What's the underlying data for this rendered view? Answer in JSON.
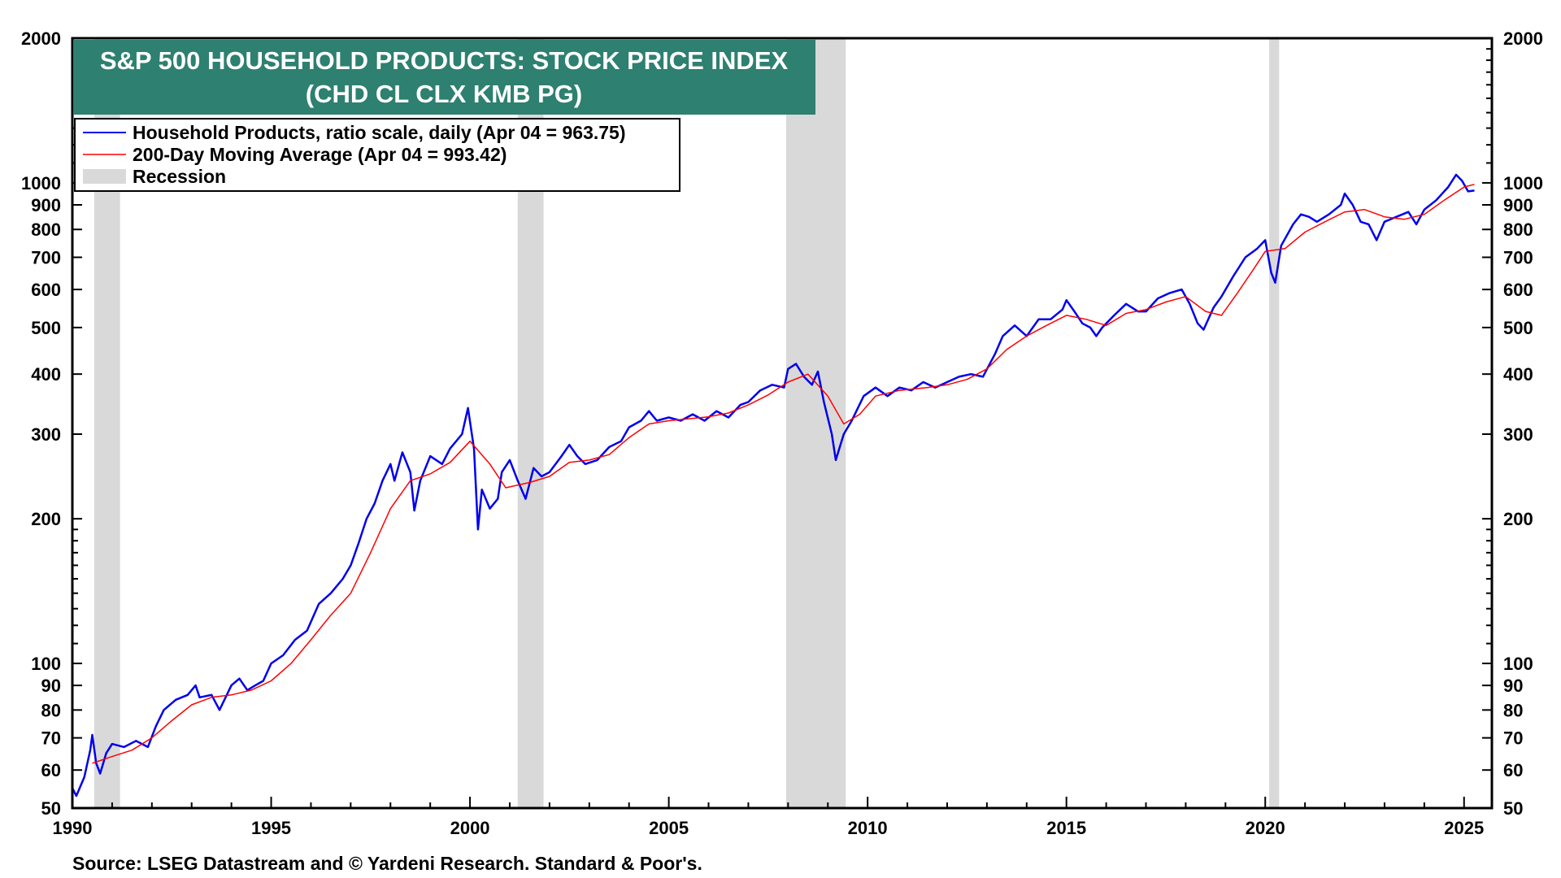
{
  "chart_data": {
    "type": "line",
    "title_line1": "S&P 500 HOUSEHOLD PRODUCTS: STOCK PRICE INDEX",
    "title_line2": "(CHD CL CLX KMB PG)",
    "x_range": [
      1990,
      2025.7
    ],
    "y_range": [
      50,
      2000
    ],
    "y_scale": "log",
    "x_ticks": [
      {
        "value": 1990,
        "label": "1990"
      },
      {
        "value": 1995,
        "label": "1995"
      },
      {
        "value": 2000,
        "label": "2000"
      },
      {
        "value": 2005,
        "label": "2005"
      },
      {
        "value": 2010,
        "label": "2010"
      },
      {
        "value": 2015,
        "label": "2015"
      },
      {
        "value": 2020,
        "label": "2020"
      },
      {
        "value": 2025,
        "label": "2025"
      }
    ],
    "y_ticks": [
      {
        "value": 50,
        "label": "50"
      },
      {
        "value": 60,
        "label": "60"
      },
      {
        "value": 70,
        "label": "70"
      },
      {
        "value": 80,
        "label": "80"
      },
      {
        "value": 90,
        "label": "90"
      },
      {
        "value": 100,
        "label": "100"
      },
      {
        "value": 200,
        "label": "200"
      },
      {
        "value": 300,
        "label": "300"
      },
      {
        "value": 400,
        "label": "400"
      },
      {
        "value": 500,
        "label": "500"
      },
      {
        "value": 600,
        "label": "600"
      },
      {
        "value": 700,
        "label": "700"
      },
      {
        "value": 800,
        "label": "800"
      },
      {
        "value": 900,
        "label": "900"
      },
      {
        "value": 1000,
        "label": "1000"
      },
      {
        "value": 2000,
        "label": "2000"
      }
    ],
    "legend": [
      {
        "label": "Household Products, ratio scale, daily (Apr 04 = 963.75)",
        "color": "#0000ee",
        "kind": "line"
      },
      {
        "label": "200-Day Moving Average (Apr 04 = 993.42)",
        "color": "#ff0000",
        "kind": "line"
      },
      {
        "label": "Recession",
        "color": "#d9d9d9",
        "kind": "box"
      }
    ],
    "recessions": [
      [
        1990.55,
        1991.2
      ],
      [
        2001.2,
        2001.85
      ],
      [
        2007.95,
        2009.45
      ],
      [
        2020.1,
        2020.35
      ]
    ],
    "series": [
      {
        "name": "Household Products, ratio scale, daily",
        "color": "#0000ee",
        "points": [
          [
            1990.0,
            55
          ],
          [
            1990.1,
            53
          ],
          [
            1990.3,
            58
          ],
          [
            1990.45,
            66
          ],
          [
            1990.5,
            71
          ],
          [
            1990.6,
            62
          ],
          [
            1990.7,
            59
          ],
          [
            1990.85,
            65
          ],
          [
            1991.0,
            68
          ],
          [
            1991.3,
            67
          ],
          [
            1991.6,
            69
          ],
          [
            1991.9,
            67
          ],
          [
            1992.1,
            74
          ],
          [
            1992.3,
            80
          ],
          [
            1992.6,
            84
          ],
          [
            1992.9,
            86
          ],
          [
            1993.1,
            90
          ],
          [
            1993.2,
            85
          ],
          [
            1993.5,
            86
          ],
          [
            1993.7,
            80
          ],
          [
            1994.0,
            90
          ],
          [
            1994.2,
            93
          ],
          [
            1994.4,
            88
          ],
          [
            1994.6,
            90
          ],
          [
            1994.8,
            92
          ],
          [
            1995.0,
            100
          ],
          [
            1995.3,
            104
          ],
          [
            1995.6,
            112
          ],
          [
            1995.9,
            117
          ],
          [
            1996.2,
            133
          ],
          [
            1996.5,
            140
          ],
          [
            1996.8,
            150
          ],
          [
            1997.0,
            160
          ],
          [
            1997.2,
            178
          ],
          [
            1997.4,
            200
          ],
          [
            1997.6,
            215
          ],
          [
            1997.8,
            240
          ],
          [
            1998.0,
            260
          ],
          [
            1998.1,
            240
          ],
          [
            1998.3,
            275
          ],
          [
            1998.5,
            250
          ],
          [
            1998.6,
            208
          ],
          [
            1998.75,
            240
          ],
          [
            1999.0,
            270
          ],
          [
            1999.3,
            260
          ],
          [
            1999.5,
            280
          ],
          [
            1999.8,
            300
          ],
          [
            1999.95,
            340
          ],
          [
            2000.1,
            280
          ],
          [
            2000.2,
            190
          ],
          [
            2000.3,
            230
          ],
          [
            2000.5,
            210
          ],
          [
            2000.7,
            220
          ],
          [
            2000.8,
            250
          ],
          [
            2001.0,
            265
          ],
          [
            2001.2,
            240
          ],
          [
            2001.4,
            220
          ],
          [
            2001.6,
            255
          ],
          [
            2001.8,
            245
          ],
          [
            2002.0,
            250
          ],
          [
            2002.3,
            270
          ],
          [
            2002.5,
            285
          ],
          [
            2002.7,
            270
          ],
          [
            2002.9,
            260
          ],
          [
            2003.2,
            265
          ],
          [
            2003.5,
            282
          ],
          [
            2003.8,
            290
          ],
          [
            2004.0,
            310
          ],
          [
            2004.3,
            320
          ],
          [
            2004.5,
            335
          ],
          [
            2004.7,
            320
          ],
          [
            2005.0,
            325
          ],
          [
            2005.3,
            320
          ],
          [
            2005.6,
            330
          ],
          [
            2005.9,
            320
          ],
          [
            2006.2,
            335
          ],
          [
            2006.5,
            325
          ],
          [
            2006.8,
            345
          ],
          [
            2007.0,
            350
          ],
          [
            2007.3,
            370
          ],
          [
            2007.6,
            380
          ],
          [
            2007.9,
            375
          ],
          [
            2008.0,
            410
          ],
          [
            2008.2,
            420
          ],
          [
            2008.4,
            395
          ],
          [
            2008.6,
            380
          ],
          [
            2008.75,
            405
          ],
          [
            2008.9,
            350
          ],
          [
            2009.1,
            300
          ],
          [
            2009.2,
            265
          ],
          [
            2009.4,
            300
          ],
          [
            2009.6,
            320
          ],
          [
            2009.9,
            360
          ],
          [
            2010.2,
            375
          ],
          [
            2010.5,
            360
          ],
          [
            2010.8,
            375
          ],
          [
            2011.1,
            370
          ],
          [
            2011.4,
            385
          ],
          [
            2011.7,
            375
          ],
          [
            2012.0,
            385
          ],
          [
            2012.3,
            395
          ],
          [
            2012.6,
            400
          ],
          [
            2012.9,
            395
          ],
          [
            2013.2,
            440
          ],
          [
            2013.4,
            480
          ],
          [
            2013.7,
            505
          ],
          [
            2014.0,
            480
          ],
          [
            2014.3,
            520
          ],
          [
            2014.6,
            520
          ],
          [
            2014.9,
            545
          ],
          [
            2015.0,
            570
          ],
          [
            2015.2,
            540
          ],
          [
            2015.4,
            510
          ],
          [
            2015.6,
            500
          ],
          [
            2015.75,
            480
          ],
          [
            2015.9,
            500
          ],
          [
            2016.2,
            530
          ],
          [
            2016.5,
            560
          ],
          [
            2016.8,
            540
          ],
          [
            2017.0,
            540
          ],
          [
            2017.3,
            575
          ],
          [
            2017.6,
            590
          ],
          [
            2017.9,
            600
          ],
          [
            2018.1,
            560
          ],
          [
            2018.3,
            510
          ],
          [
            2018.45,
            495
          ],
          [
            2018.7,
            550
          ],
          [
            2018.9,
            580
          ],
          [
            2019.2,
            640
          ],
          [
            2019.5,
            700
          ],
          [
            2019.8,
            730
          ],
          [
            2020.0,
            760
          ],
          [
            2020.15,
            650
          ],
          [
            2020.25,
            620
          ],
          [
            2020.4,
            740
          ],
          [
            2020.7,
            820
          ],
          [
            2020.9,
            860
          ],
          [
            2021.1,
            850
          ],
          [
            2021.3,
            830
          ],
          [
            2021.6,
            860
          ],
          [
            2021.9,
            900
          ],
          [
            2022.0,
            950
          ],
          [
            2022.2,
            900
          ],
          [
            2022.4,
            830
          ],
          [
            2022.6,
            820
          ],
          [
            2022.8,
            760
          ],
          [
            2023.0,
            830
          ],
          [
            2023.3,
            850
          ],
          [
            2023.6,
            870
          ],
          [
            2023.8,
            820
          ],
          [
            2024.0,
            880
          ],
          [
            2024.3,
            920
          ],
          [
            2024.6,
            980
          ],
          [
            2024.8,
            1040
          ],
          [
            2024.95,
            1010
          ],
          [
            2025.1,
            960
          ],
          [
            2025.26,
            964
          ]
        ]
      },
      {
        "name": "200-Day Moving Average",
        "color": "#ff0000",
        "points": [
          [
            1990.5,
            62
          ],
          [
            1991.0,
            64
          ],
          [
            1991.5,
            66
          ],
          [
            1992.0,
            70
          ],
          [
            1992.5,
            76
          ],
          [
            1993.0,
            82
          ],
          [
            1993.5,
            85
          ],
          [
            1994.0,
            86
          ],
          [
            1994.5,
            88
          ],
          [
            1995.0,
            92
          ],
          [
            1995.5,
            100
          ],
          [
            1996.0,
            112
          ],
          [
            1996.5,
            126
          ],
          [
            1997.0,
            140
          ],
          [
            1997.5,
            170
          ],
          [
            1998.0,
            210
          ],
          [
            1998.5,
            240
          ],
          [
            1999.0,
            248
          ],
          [
            1999.5,
            262
          ],
          [
            2000.0,
            290
          ],
          [
            2000.5,
            260
          ],
          [
            2000.9,
            232
          ],
          [
            2001.5,
            238
          ],
          [
            2002.0,
            245
          ],
          [
            2002.5,
            262
          ],
          [
            2003.0,
            265
          ],
          [
            2003.5,
            272
          ],
          [
            2004.0,
            295
          ],
          [
            2004.5,
            315
          ],
          [
            2005.0,
            320
          ],
          [
            2005.5,
            323
          ],
          [
            2006.0,
            326
          ],
          [
            2006.5,
            332
          ],
          [
            2007.0,
            345
          ],
          [
            2007.5,
            362
          ],
          [
            2008.0,
            385
          ],
          [
            2008.5,
            400
          ],
          [
            2009.0,
            360
          ],
          [
            2009.4,
            315
          ],
          [
            2009.8,
            330
          ],
          [
            2010.2,
            360
          ],
          [
            2010.8,
            370
          ],
          [
            2011.5,
            375
          ],
          [
            2012.0,
            380
          ],
          [
            2012.5,
            390
          ],
          [
            2013.0,
            410
          ],
          [
            2013.5,
            450
          ],
          [
            2014.0,
            480
          ],
          [
            2014.5,
            505
          ],
          [
            2015.0,
            530
          ],
          [
            2015.5,
            520
          ],
          [
            2016.0,
            505
          ],
          [
            2016.5,
            535
          ],
          [
            2017.0,
            545
          ],
          [
            2017.5,
            565
          ],
          [
            2018.0,
            580
          ],
          [
            2018.5,
            540
          ],
          [
            2018.9,
            530
          ],
          [
            2019.3,
            590
          ],
          [
            2019.7,
            660
          ],
          [
            2020.0,
            720
          ],
          [
            2020.5,
            730
          ],
          [
            2021.0,
            790
          ],
          [
            2021.5,
            830
          ],
          [
            2022.0,
            870
          ],
          [
            2022.5,
            880
          ],
          [
            2023.0,
            850
          ],
          [
            2023.5,
            840
          ],
          [
            2024.0,
            860
          ],
          [
            2024.5,
            920
          ],
          [
            2025.0,
            980
          ],
          [
            2025.26,
            993
          ]
        ]
      }
    ],
    "source": "Source: LSEG Datastream and © Yardeni Research. Standard & Poor's."
  },
  "colors": {
    "title_bg": "#2e8070",
    "price_line": "#0000ee",
    "ma_line": "#ff0000",
    "recession": "#d9d9d9"
  }
}
